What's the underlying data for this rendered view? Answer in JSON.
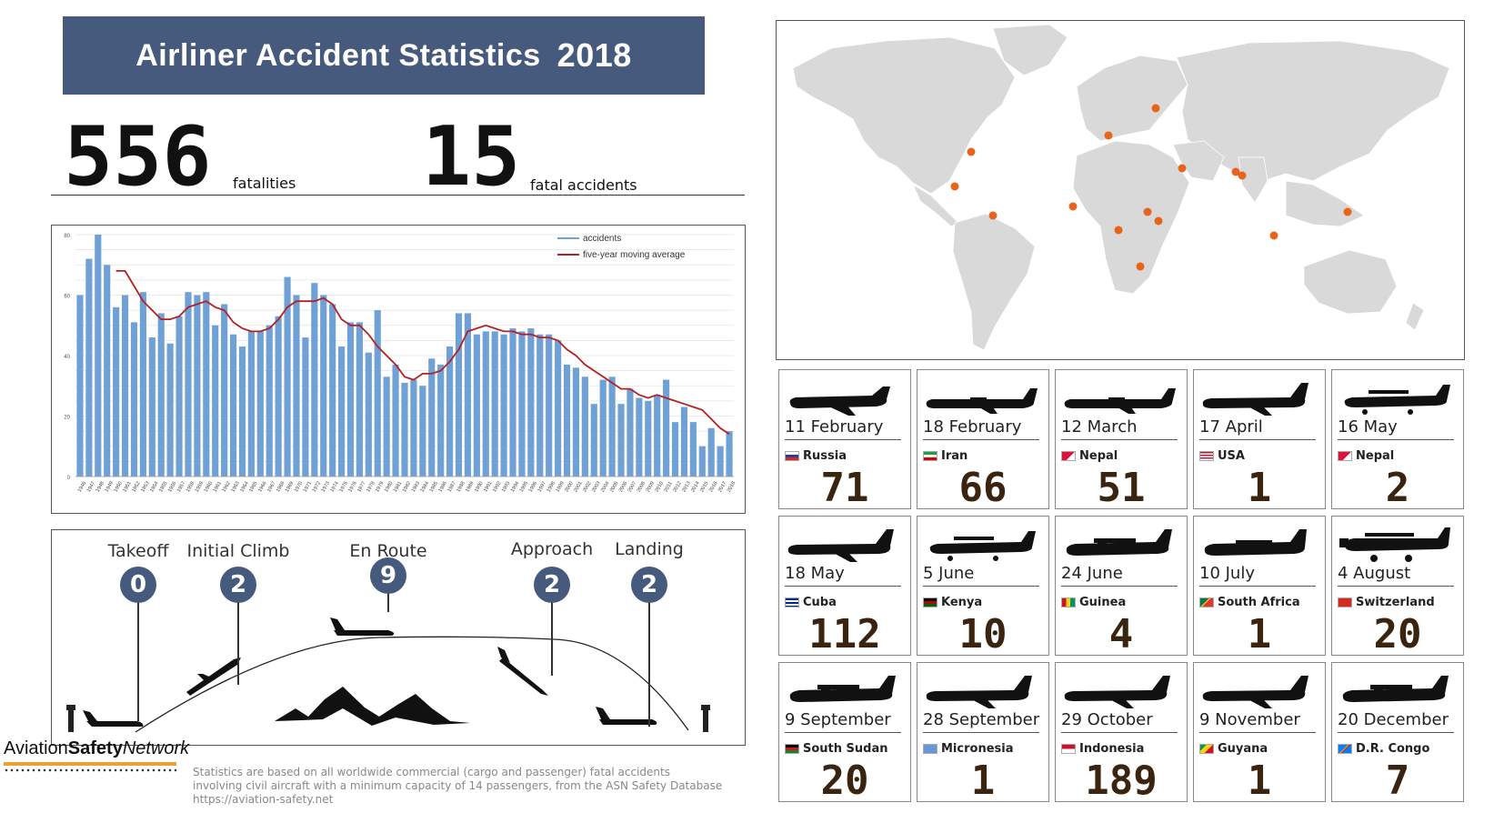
{
  "header": {
    "title": "Airliner Accident Statistics",
    "year": "2018"
  },
  "stats": {
    "fatalities_value": "556",
    "fatalities_label": "fatalities",
    "accidents_value": "15",
    "accidents_label": "fatal accidents"
  },
  "chart_data": {
    "type": "bar",
    "title": "",
    "xlabel": "",
    "ylabel": "",
    "ylim": [
      0,
      80
    ],
    "yticks": [
      "0",
      "20",
      "40",
      "60",
      "80"
    ],
    "categories": [
      "1946",
      "1947",
      "1948",
      "1949",
      "1950",
      "1951",
      "1952",
      "1953",
      "1954",
      "1955",
      "1956",
      "1957",
      "1958",
      "1959",
      "1960",
      "1961",
      "1962",
      "1963",
      "1964",
      "1965",
      "1966",
      "1967",
      "1968",
      "1969",
      "1970",
      "1971",
      "1972",
      "1973",
      "1974",
      "1975",
      "1976",
      "1977",
      "1978",
      "1979",
      "1980",
      "1981",
      "1982",
      "1983",
      "1984",
      "1985",
      "1986",
      "1987",
      "1988",
      "1989",
      "1990",
      "1991",
      "1992",
      "1993",
      "1994",
      "1995",
      "1996",
      "1997",
      "1998",
      "1999",
      "2000",
      "2001",
      "2002",
      "2003",
      "2004",
      "2005",
      "2006",
      "2007",
      "2008",
      "2009",
      "2010",
      "2011",
      "2012",
      "2013",
      "2014",
      "2015",
      "2016",
      "2017",
      "2018"
    ],
    "series": [
      {
        "name": "accidents",
        "color": "#6fa0d6",
        "values": [
          60,
          72,
          80,
          70,
          56,
          60,
          51,
          61,
          46,
          54,
          44,
          53,
          61,
          60,
          61,
          50,
          57,
          47,
          43,
          48,
          48,
          50,
          53,
          66,
          60,
          46,
          64,
          60,
          57,
          43,
          51,
          51,
          41,
          55,
          33,
          37,
          31,
          32,
          30,
          39,
          37,
          43,
          54,
          54,
          47,
          48,
          48,
          47,
          49,
          48,
          49,
          47,
          47,
          45,
          37,
          36,
          33,
          24,
          32,
          33,
          24,
          29,
          26,
          25,
          27,
          32,
          18,
          23,
          18,
          10,
          16,
          10,
          15
        ]
      },
      {
        "name": "five-year moving average",
        "color": "#b22222",
        "values": [
          null,
          null,
          null,
          null,
          68,
          68,
          63,
          58,
          55,
          52,
          52,
          53,
          56,
          57,
          58,
          56,
          55,
          51,
          49,
          48,
          48,
          49,
          52,
          56,
          58,
          58,
          58,
          59,
          57,
          52,
          50,
          50,
          47,
          43,
          40,
          37,
          33,
          32,
          34,
          34,
          35,
          38,
          42,
          48,
          49,
          50,
          49,
          48,
          48,
          47,
          47,
          46,
          46,
          45,
          42,
          40,
          37,
          35,
          33,
          31,
          29,
          29,
          27,
          26,
          27,
          26,
          25,
          24,
          23,
          22,
          19,
          16,
          14
        ]
      }
    ],
    "legend_position": "top-right",
    "grid": true
  },
  "flight_phases": [
    {
      "label": "Takeoff",
      "count": "0"
    },
    {
      "label": "Initial Climb",
      "count": "2"
    },
    {
      "label": "En Route",
      "count": "9"
    },
    {
      "label": "Approach",
      "count": "2"
    },
    {
      "label": "Landing",
      "count": "2"
    }
  ],
  "footer": {
    "logo_plain": "Aviation",
    "logo_bold": "Safety",
    "logo_italic": "Network",
    "note_line1": "Statistics are based on all worldwide commercial (cargo and passenger) fatal accidents",
    "note_line2": "involving civil aircraft with a minimum capacity of 14 passengers, from the ASN Safety Database",
    "note_line3": "https://aviation-safety.net"
  },
  "map": {
    "accent": "#e8641a"
  },
  "accidents": [
    {
      "date": "11 February",
      "country": "Russia",
      "fatalities": "71",
      "flag": "ru",
      "plane": "regional-jet"
    },
    {
      "date": "18 February",
      "country": "Iran",
      "fatalities": "66",
      "flag": "ir",
      "plane": "turboprop"
    },
    {
      "date": "12 March",
      "country": "Nepal",
      "fatalities": "51",
      "flag": "np",
      "plane": "turboprop"
    },
    {
      "date": "17 April",
      "country": "USA",
      "fatalities": "1",
      "flag": "us",
      "plane": "narrowbody-jet"
    },
    {
      "date": "16 May",
      "country": "Nepal",
      "fatalities": "2",
      "flag": "np",
      "plane": "small-turboprop"
    },
    {
      "date": "18 May",
      "country": "Cuba",
      "fatalities": "112",
      "flag": "cu",
      "plane": "narrowbody-jet"
    },
    {
      "date": "5 June",
      "country": "Kenya",
      "fatalities": "10",
      "flag": "ke",
      "plane": "small-turboprop"
    },
    {
      "date": "24 June",
      "country": "Guinea",
      "fatalities": "4",
      "flag": "gn",
      "plane": "twin-turboprop"
    },
    {
      "date": "10 July",
      "country": "South Africa",
      "fatalities": "1",
      "flag": "za",
      "plane": "vintage-airliner"
    },
    {
      "date": "4 August",
      "country": "Switzerland",
      "fatalities": "20",
      "flag": "ch",
      "plane": "trimotor"
    },
    {
      "date": "9 September",
      "country": "South Sudan",
      "fatalities": "20",
      "flag": "ss",
      "plane": "twin-turboprop"
    },
    {
      "date": "28 September",
      "country": "Micronesia",
      "fatalities": "1",
      "flag": "fm",
      "plane": "narrowbody-jet"
    },
    {
      "date": "29 October",
      "country": "Indonesia",
      "fatalities": "189",
      "flag": "id",
      "plane": "narrowbody-jet"
    },
    {
      "date": "9 November",
      "country": "Guyana",
      "fatalities": "1",
      "flag": "gy",
      "plane": "narrowbody-jet"
    },
    {
      "date": "20 December",
      "country": "D.R. Congo",
      "fatalities": "7",
      "flag": "cd",
      "plane": "twin-turboprop"
    }
  ]
}
